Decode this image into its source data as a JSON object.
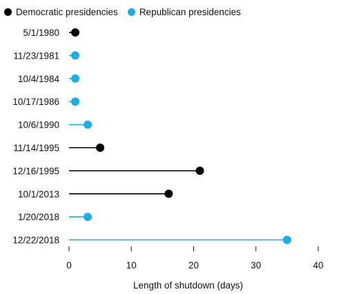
{
  "legend": [
    {
      "label": "Democratic presidencies",
      "color": "#000000"
    },
    {
      "label": "Republican presidencies",
      "color": "#1aaee8"
    }
  ],
  "chart_data": {
    "type": "lollipop",
    "xlabel": "Length of shutdown (days)",
    "xlim": [
      0,
      40
    ],
    "xticks": [
      0,
      10,
      20,
      30,
      40
    ],
    "categories": [
      "5/1/1980",
      "11/23/1981",
      "10/4/1984",
      "10/17/1986",
      "10/6/1990",
      "11/14/1995",
      "12/16/1995",
      "10/1/2013",
      "1/20/2018",
      "12/22/2018"
    ],
    "values": [
      1,
      1,
      1,
      1,
      3,
      5,
      21,
      16,
      3,
      35
    ],
    "party": [
      "Democratic",
      "Republican",
      "Republican",
      "Republican",
      "Republican",
      "Democratic",
      "Democratic",
      "Democratic",
      "Republican",
      "Republican"
    ],
    "colors": {
      "Democratic": "#000000",
      "Republican": "#1aaee8"
    },
    "grid": false,
    "legend_position": "top-left"
  }
}
